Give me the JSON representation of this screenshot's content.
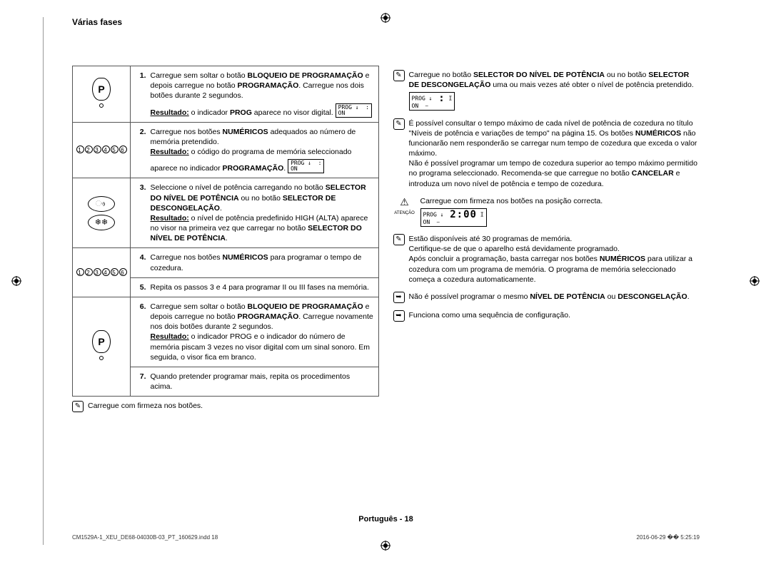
{
  "heading": "Várias fases",
  "steps": [
    {
      "num": "1.",
      "iconType": "P",
      "html": "Carregue sem soltar o botão <b>BLOQUEIO DE PROGRAMAÇÃO</b> e depois carregue no botão <b>PROGRAMAÇÃO</b>. Carregue nos dois botões durante 2 segundos.<br><b><u>Resultado:</u></b> o indicador <b>PROG</b> aparece no visor digital.",
      "lcd": {
        "prog": "PROG",
        "on": "ON",
        "time": ":"
      }
    },
    {
      "num": "2.",
      "iconType": "numbers",
      "html": "Carregue nos botões <b>NUMÉRICOS</b> adequados ao número de memória pretendido.<br><b><u>Resultado:</u></b> o código do programa de memória seleccionado aparece no indicador <b>PROGRAMAÇÃO</b>.",
      "lcd": {
        "prog": "PROG",
        "on": "ON",
        "time": ":"
      }
    },
    {
      "num": "3.",
      "iconType": "heat-defrost",
      "html": "Seleccione o nível de potência carregando no botão <b>SELECTOR DO NÍVEL DE POTÊNCIA</b> ou no botão <b>SELECTOR DE DESCONGELAÇÃO</b>.<br><b><u>Resultado:</u></b> o nível de potência predefinido HIGH (ALTA) aparece no visor na primeira vez que carregar no botão <b>SELECTOR DO NÍVEL DE POTÊNCIA</b>."
    },
    {
      "num": "4.",
      "iconType": "numbers",
      "rowspan2with5": true,
      "html": "Carregue nos botões <b>NUMÉRICOS</b> para programar o tempo de cozedura."
    },
    {
      "num": "5.",
      "html": "Repita os passos 3 e 4 para programar II ou III fases na memória."
    },
    {
      "num": "6.",
      "iconType": "P",
      "rowspan2with7": true,
      "html": "Carregue sem soltar o botão <b>BLOQUEIO DE PROGRAMAÇÃO</b> e depois carregue no botão <b>PROGRAMAÇÃO</b>. Carregue novamente nos dois botões durante 2 segundos.<br><b><u>Resultado:</u></b> o indicador PROG e o indicador do número de memória piscam 3 vezes no visor digital com um sinal sonoro. Em seguida, o visor fica em branco."
    },
    {
      "num": "7.",
      "html": "Quando pretender programar mais, repita os procedimentos acima."
    }
  ],
  "leftNote": "Carregue com firmeza nos botões.",
  "rightNotes": [
    {
      "icon": "check",
      "html": "Carregue no botão <b>SELECTOR DO NÍVEL DE POTÊNCIA</b> ou no botão <b>SELECTOR DE DESCONGELAÇÃO</b> uma ou mais vezes até obter o nível de potência pretendido.",
      "lcd": {
        "prog": "PROG",
        "on": "ON",
        "time": ":",
        "extra": "I"
      }
    },
    {
      "icon": "check",
      "html": "É possível consultar o tempo máximo de cada nível de potência de cozedura no título \"Níveis de potência e variações de tempo\" na página 15. Os botões <b>NUMÉRICOS</b> não funcionarão nem responderão se carregar num tempo de cozedura que exceda o valor máximo.<br>Não é possível programar um tempo de cozedura superior ao tempo máximo permitido no programa seleccionado. Recomenda-se que carregue no botão <b>CANCELAR</b> e introduza um novo nível de potência e tempo de cozedura."
    },
    {
      "icon": "warn",
      "label": "ATENÇÃO",
      "html": "Carregue com firmeza nos botões na posição correcta.",
      "lcd": {
        "prog": "PROG",
        "on": "ON",
        "time": "2:00",
        "extra": "I"
      }
    },
    {
      "icon": "check",
      "html": "Estão disponíveis até 30 programas de memória.<br>Certifique-se de que o aparelho está devidamente programado.<br>Após concluir a programação, basta carregar nos botões <b>NUMÉRICOS</b> para utilizar a cozedura com um programa de memória. O programa de memória seleccionado começa a cozedura automaticamente."
    },
    {
      "icon": "arrow",
      "html": "Não é possível programar o mesmo <b>NÍVEL DE POTÊNCIA</b> ou <b>DESCONGELAÇÃO</b>."
    },
    {
      "icon": "arrow",
      "html": "Funciona como uma sequência de configuração."
    }
  ],
  "footer": "Português - 18",
  "printL": "CM1529A-1_XEU_DE68-04030B-03_PT_160629.indd   18",
  "printR": "2016-06-29   �� 5:25:19",
  "numbers": [
    "1",
    "2",
    "3",
    "4",
    "5",
    "6"
  ]
}
